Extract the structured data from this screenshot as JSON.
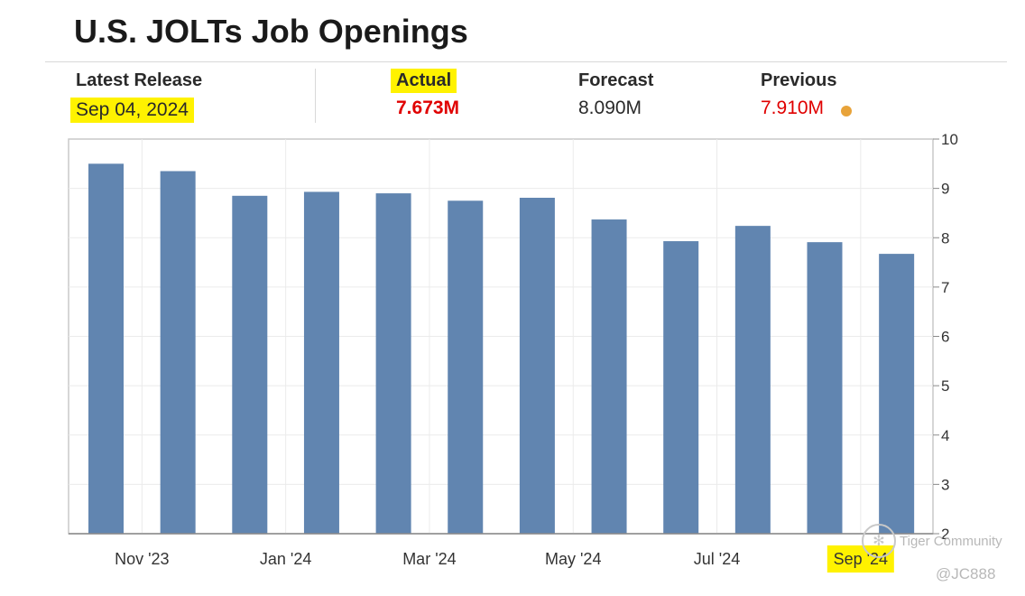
{
  "header": {
    "title": "U.S. JOLTs Job Openings"
  },
  "stats": {
    "latest_release_label": "Latest Release",
    "latest_release_value": "Sep 04, 2024",
    "actual_label": "Actual",
    "actual_value": "7.673M",
    "forecast_label": "Forecast",
    "forecast_value": "8.090M",
    "previous_label": "Previous",
    "previous_value": "7.910M"
  },
  "colors": {
    "bar": "#6185b0",
    "highlight": "#fff200",
    "actual_red": "#e00000",
    "previous_dot": "#e8a33a"
  },
  "watermark": {
    "brand": "Tiger Community",
    "handle": "@JC888"
  },
  "chart_data": {
    "type": "bar",
    "title": "U.S. JOLTs Job Openings",
    "xlabel": "",
    "ylabel": "",
    "ylim": [
      2,
      10
    ],
    "yticks": [
      2,
      3,
      4,
      5,
      6,
      7,
      8,
      9,
      10
    ],
    "y_axis_side": "right",
    "grid": true,
    "x_tick_labels": [
      "Nov '23",
      "Jan '24",
      "Mar '24",
      "May '24",
      "Jul '24",
      "Sep '24"
    ],
    "values": [
      9.5,
      9.35,
      8.85,
      8.93,
      8.9,
      8.75,
      8.81,
      8.37,
      7.93,
      8.24,
      7.91,
      7.673
    ]
  }
}
